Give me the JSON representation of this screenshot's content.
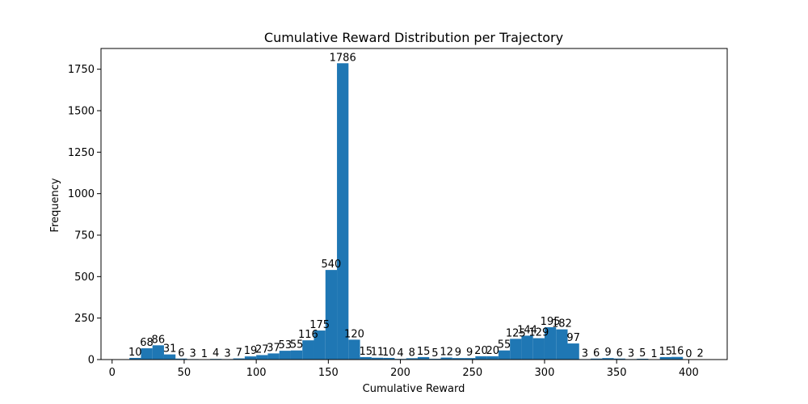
{
  "chart_data": {
    "type": "bar",
    "title": "Cumulative Reward Distribution per Trajectory",
    "xlabel": "Cumulative Reward",
    "ylabel": "Frequency",
    "xlim": [
      -7.7,
      426.7
    ],
    "ylim": [
      0,
      1875
    ],
    "xticks": [
      0,
      50,
      100,
      150,
      200,
      250,
      300,
      350,
      400
    ],
    "yticks": [
      0,
      250,
      500,
      750,
      1000,
      1250,
      1500,
      1750
    ],
    "bar_color": "#1f77b4",
    "bin_width": 8,
    "bin_start": 12,
    "values": [
      10,
      68,
      86,
      31,
      6,
      3,
      1,
      4,
      3,
      7,
      19,
      27,
      37,
      53,
      55,
      116,
      175,
      540,
      1786,
      120,
      15,
      11,
      10,
      4,
      8,
      15,
      5,
      12,
      9,
      9,
      20,
      20,
      55,
      125,
      144,
      129,
      195,
      182,
      97,
      3,
      6,
      9,
      6,
      3,
      5,
      1,
      15,
      16,
      0,
      2
    ],
    "labels": [
      "10",
      "68",
      "86",
      "31",
      "6",
      "3",
      "1",
      "4",
      "3",
      "7",
      "19",
      "27",
      "37",
      "53",
      "55",
      "116",
      "175",
      "540",
      "1786",
      "120",
      "15",
      "11",
      "10",
      "4",
      "8",
      "15",
      "5",
      "12",
      "9",
      "9",
      "20",
      "20",
      "55",
      "125",
      "144",
      "129",
      "195",
      "182",
      "97",
      "3",
      "6",
      "9",
      "6",
      "3",
      "5",
      "1",
      "15",
      "16",
      "0",
      "2"
    ]
  }
}
